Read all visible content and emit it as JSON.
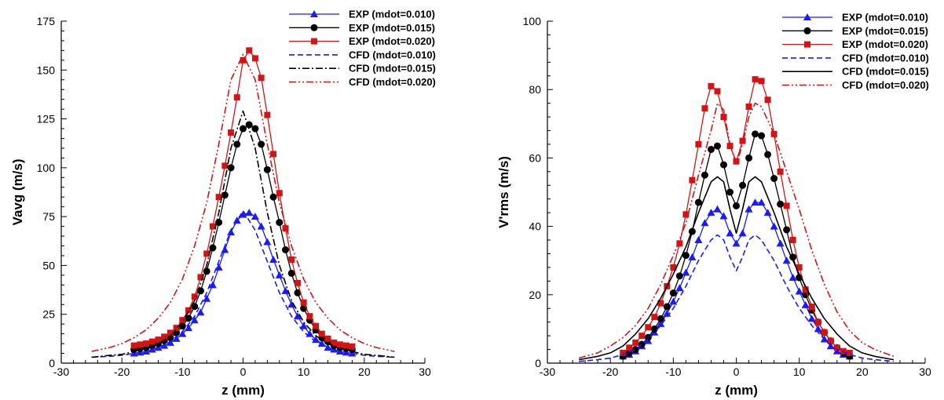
{
  "chart_data": [
    {
      "type": "line",
      "title": "",
      "xlabel": "z (mm)",
      "ylabel": "Vavg  (m/s)",
      "xlim": [
        -30,
        30
      ],
      "ylim": [
        0,
        175
      ],
      "xticks": [
        -30,
        -20,
        -10,
        0,
        10,
        20,
        30
      ],
      "yticks": [
        0,
        25,
        50,
        75,
        100,
        125,
        150,
        175
      ],
      "grid": false,
      "legend_position": "top-right",
      "series": [
        {
          "name": "EXP (mdot=0.010)",
          "color": "#1a1aff",
          "style": "solid",
          "marker": "triangle",
          "x": [
            -18,
            -17,
            -16,
            -15,
            -14,
            -13,
            -12,
            -11,
            -10,
            -9,
            -8,
            -7,
            -6,
            -5,
            -4,
            -3,
            -2,
            -1,
            0,
            1,
            2,
            3,
            4,
            5,
            6,
            7,
            8,
            9,
            10,
            11,
            12,
            13,
            14,
            15,
            16,
            17,
            18
          ],
          "y": [
            5,
            5.5,
            6,
            7,
            8,
            9,
            10.5,
            12.5,
            15,
            18,
            22,
            26,
            33,
            40,
            49,
            58,
            67,
            73,
            76,
            77,
            75,
            70,
            62,
            53,
            45,
            37,
            30,
            24,
            19,
            15,
            12,
            10,
            8,
            7,
            6,
            5.5,
            5
          ]
        },
        {
          "name": "EXP (mdot=0.015)",
          "color": "#000000",
          "style": "solid",
          "marker": "circle",
          "x": [
            -18,
            -17,
            -16,
            -15,
            -14,
            -13,
            -12,
            -11,
            -10,
            -9,
            -8,
            -7,
            -6,
            -5,
            -4,
            -3,
            -2,
            -1,
            0,
            1,
            2,
            3,
            4,
            5,
            6,
            7,
            8,
            9,
            10,
            11,
            12,
            13,
            14,
            15,
            16,
            17,
            18
          ],
          "y": [
            7,
            7.5,
            8,
            9,
            10,
            11.5,
            13,
            15.5,
            19,
            23,
            29,
            37,
            47,
            59,
            72,
            86,
            100,
            112,
            120,
            122,
            120,
            112,
            99,
            85,
            72,
            58,
            46,
            36,
            28,
            22,
            17,
            13,
            11,
            9,
            8,
            7.5,
            7
          ]
        },
        {
          "name": "EXP (mdot=0.020)",
          "color": "#d41414",
          "style": "solid",
          "marker": "square",
          "x": [
            -18,
            -17,
            -16,
            -15,
            -14,
            -13,
            -12,
            -11,
            -10,
            -9,
            -8,
            -7,
            -6,
            -5,
            -4,
            -3,
            -2,
            -1,
            0,
            1,
            2,
            3,
            4,
            5,
            6,
            7,
            8,
            9,
            10,
            11,
            12,
            13,
            14,
            15,
            16,
            17,
            18
          ],
          "y": [
            9,
            9.5,
            10,
            11,
            12,
            13.5,
            15.5,
            18,
            22,
            27,
            34,
            44,
            56,
            70,
            85,
            101,
            118,
            136,
            155,
            160,
            156,
            146,
            127,
            107,
            87,
            69,
            53,
            41,
            31,
            24,
            19,
            15,
            12.5,
            10.5,
            9.5,
            9,
            8.5
          ]
        },
        {
          "name": "CFD (mdot=0.010)",
          "color": "#1a1aff",
          "style": "dashed",
          "marker": "none",
          "x": [
            -25,
            -22,
            -20,
            -18,
            -16,
            -14,
            -12,
            -10,
            -8,
            -6,
            -4,
            -2,
            0,
            2,
            4,
            6,
            8,
            10,
            12,
            14,
            16,
            18,
            20,
            22,
            25
          ],
          "y": [
            3,
            3.5,
            4,
            5,
            6,
            8,
            11,
            16,
            24,
            36,
            52,
            68,
            78,
            68,
            52,
            36,
            24,
            16,
            11,
            8,
            6,
            5,
            4,
            3.5,
            3
          ]
        },
        {
          "name": "CFD (mdot=0.015)",
          "color": "#000000",
          "style": "dashdot",
          "marker": "none",
          "x": [
            -25,
            -22,
            -20,
            -18,
            -16,
            -14,
            -12,
            -10,
            -8,
            -6,
            -4,
            -2,
            0,
            2,
            4,
            6,
            8,
            10,
            12,
            14,
            16,
            18,
            20,
            22,
            25
          ],
          "y": [
            3,
            4,
            4.5,
            6,
            7.5,
            10,
            14,
            21,
            32,
            50,
            77,
            110,
            129,
            110,
            77,
            50,
            32,
            21,
            14,
            10,
            7.5,
            6,
            4.5,
            4,
            3
          ]
        },
        {
          "name": "CFD (mdot=0.020)",
          "color": "#d41414",
          "style": "dashdotdot",
          "marker": "none",
          "x": [
            -25,
            -22,
            -20,
            -18,
            -16,
            -14,
            -12,
            -10,
            -8,
            -6,
            -4,
            -2,
            0,
            2,
            4,
            6,
            8,
            10,
            12,
            14,
            16,
            18,
            20,
            22,
            25
          ],
          "y": [
            6,
            8,
            10,
            13,
            17,
            23,
            31,
            43,
            60,
            82,
            112,
            145,
            158,
            145,
            112,
            82,
            60,
            43,
            31,
            23,
            17,
            13,
            10,
            8,
            6
          ]
        }
      ]
    },
    {
      "type": "line",
      "title": "",
      "xlabel": "z (mm)",
      "ylabel": "V'rms (m/s)",
      "xlim": [
        -30,
        30
      ],
      "ylim": [
        0,
        100
      ],
      "xticks": [
        -30,
        -20,
        -10,
        0,
        10,
        20,
        30
      ],
      "yticks": [
        0,
        20,
        40,
        60,
        80,
        100
      ],
      "grid": false,
      "legend_position": "top-right",
      "series": [
        {
          "name": "EXP (mdot=0.010)",
          "color": "#1a1aff",
          "style": "solid",
          "marker": "triangle",
          "x": [
            -18,
            -17,
            -16,
            -15,
            -14,
            -13,
            -12,
            -11,
            -10,
            -9,
            -8,
            -7,
            -6,
            -5,
            -4,
            -3,
            -2,
            -1,
            0,
            1,
            2,
            3,
            4,
            5,
            6,
            7,
            8,
            9,
            10,
            11,
            12,
            13,
            14,
            15,
            16,
            17,
            18
          ],
          "y": [
            2,
            2.5,
            3.5,
            5,
            6.5,
            9,
            11.5,
            14.5,
            18,
            22,
            26.5,
            31,
            36,
            41,
            44,
            45,
            43,
            38,
            35,
            38,
            45,
            47,
            47,
            44,
            40,
            35,
            30,
            25,
            21,
            17,
            13,
            10,
            7,
            5,
            3.5,
            2.5,
            2
          ]
        },
        {
          "name": "EXP (mdot=0.015)",
          "color": "#000000",
          "style": "solid",
          "marker": "circle",
          "x": [
            -18,
            -17,
            -16,
            -15,
            -14,
            -13,
            -12,
            -11,
            -10,
            -9,
            -8,
            -7,
            -6,
            -5,
            -4,
            -3,
            -2,
            -1,
            0,
            1,
            2,
            3,
            4,
            5,
            6,
            7,
            8,
            9,
            10,
            11,
            12,
            13,
            14,
            15,
            16,
            17,
            18
          ],
          "y": [
            2,
            3,
            4,
            5.5,
            7.5,
            10,
            13,
            16.5,
            20.5,
            25.5,
            31.5,
            38.5,
            47,
            55,
            62.5,
            63.5,
            58,
            50,
            46,
            52,
            60,
            67,
            66.5,
            61,
            54,
            46.5,
            39,
            31,
            25,
            20,
            15.5,
            12,
            9,
            6.5,
            4.5,
            3,
            2
          ]
        },
        {
          "name": "EXP (mdot=0.020)",
          "color": "#d41414",
          "style": "solid",
          "marker": "square",
          "x": [
            -18,
            -17,
            -16,
            -15,
            -14,
            -13,
            -12,
            -11,
            -10,
            -9,
            -8,
            -7,
            -6,
            -5,
            -4,
            -3,
            -2,
            -1,
            0,
            1,
            2,
            3,
            4,
            5,
            6,
            7,
            8,
            9,
            10,
            11,
            12,
            13,
            14,
            15,
            16,
            17,
            18
          ],
          "y": [
            3,
            4.5,
            6,
            8,
            10.5,
            13.5,
            17.5,
            22.5,
            28,
            35,
            43.5,
            53.5,
            64,
            74.5,
            81,
            79.5,
            72,
            63.5,
            59,
            65,
            75,
            83,
            82.5,
            77,
            67,
            56,
            46,
            36,
            28,
            21.5,
            16.5,
            12,
            9,
            6.5,
            4.5,
            3.5,
            3
          ]
        },
        {
          "name": "CFD (mdot=0.010)",
          "color": "#1a1aff",
          "style": "dashed",
          "marker": "none",
          "x": [
            -25,
            -22,
            -20,
            -18,
            -16,
            -14,
            -12,
            -10,
            -8,
            -6,
            -4,
            -3,
            -2,
            -1,
            0,
            1,
            2,
            3,
            4,
            6,
            8,
            10,
            12,
            14,
            16,
            18,
            20,
            22,
            25
          ],
          "y": [
            0.5,
            1,
            1.5,
            2.5,
            4,
            7,
            11,
            16,
            22.5,
            30,
            36,
            37.5,
            36,
            31,
            27,
            31,
            36,
            37.5,
            36,
            30,
            22.5,
            16,
            11,
            7,
            4,
            2.5,
            1.5,
            1,
            0.5
          ]
        },
        {
          "name": "CFD (mdot=0.015)",
          "color": "#000000",
          "style": "solid",
          "marker": "none",
          "x": [
            -25,
            -22,
            -20,
            -18,
            -16,
            -14,
            -12,
            -10,
            -8,
            -6,
            -4,
            -3,
            -2,
            -1,
            0,
            1,
            2,
            3,
            4,
            6,
            8,
            10,
            12,
            14,
            16,
            18,
            20,
            22,
            25
          ],
          "y": [
            1,
            2,
            3,
            5,
            8.5,
            13,
            19,
            26,
            34,
            44,
            53,
            54.5,
            53,
            45,
            38,
            45,
            53,
            54.5,
            53,
            44,
            34,
            26,
            19,
            13,
            8.5,
            5,
            3,
            2,
            1
          ]
        },
        {
          "name": "CFD (mdot=0.020)",
          "color": "#d41414",
          "style": "dashdotdot",
          "marker": "none",
          "x": [
            -25,
            -22,
            -20,
            -18,
            -16,
            -14,
            -12,
            -10,
            -8,
            -6,
            -4,
            -3,
            -2,
            -1,
            0,
            1,
            2,
            3,
            4,
            6,
            8,
            10,
            12,
            14,
            16,
            18,
            20,
            22,
            25
          ],
          "y": [
            1.5,
            3,
            5,
            7.5,
            11,
            16,
            23,
            31.5,
            41,
            55,
            68,
            76,
            74,
            64,
            58,
            64,
            72,
            76,
            75,
            67,
            56,
            45,
            33,
            23,
            15,
            9.5,
            6,
            4,
            2
          ]
        }
      ]
    }
  ]
}
